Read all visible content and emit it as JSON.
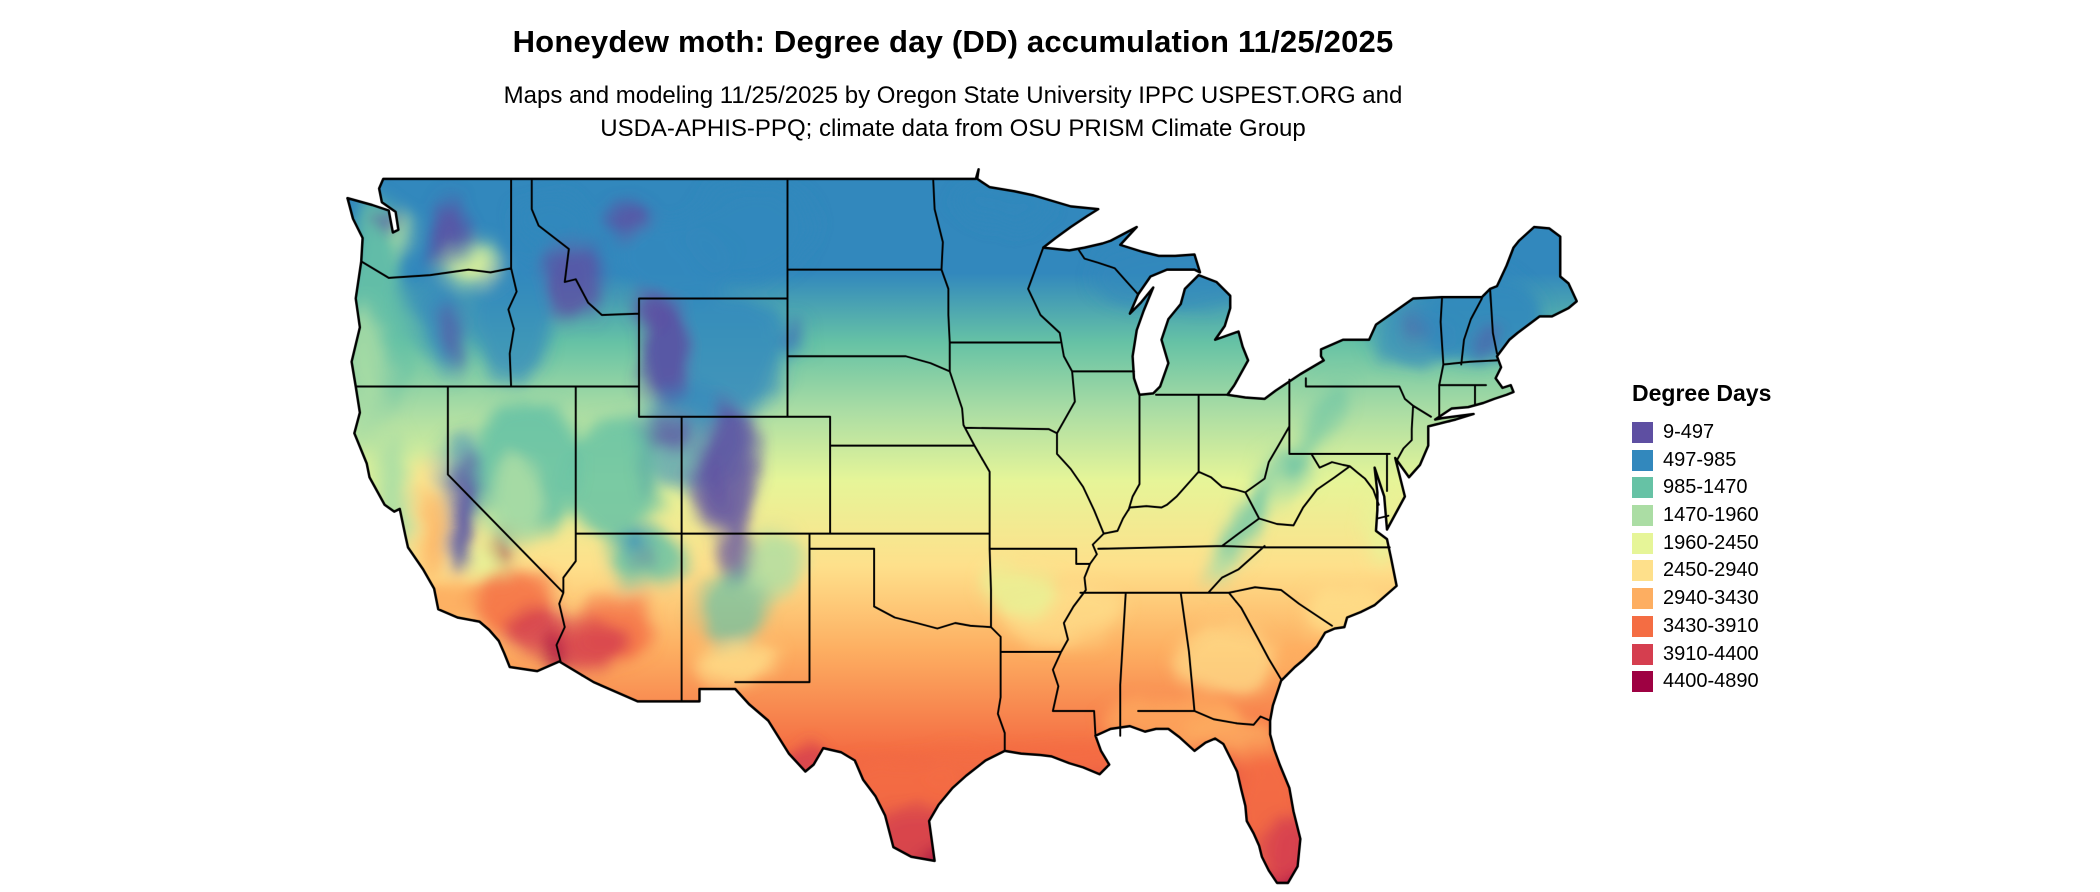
{
  "header": {
    "title": "Honeydew moth: Degree day (DD) accumulation 11/25/2025",
    "subtitle_line1": "Maps and modeling 11/25/2025 by Oregon State University IPPC USPEST.ORG and",
    "subtitle_line2": "USDA-APHIS-PPQ; climate data from OSU PRISM Climate Group"
  },
  "legend": {
    "title": "Degree Days",
    "entries": [
      {
        "label": "9-497",
        "color": "#5e4fa2"
      },
      {
        "label": "497-985",
        "color": "#3288bd"
      },
      {
        "label": "985-1470",
        "color": "#66c2a5"
      },
      {
        "label": "1470-1960",
        "color": "#abdda4"
      },
      {
        "label": "1960-2450",
        "color": "#e6f598"
      },
      {
        "label": "2450-2940",
        "color": "#fee08b"
      },
      {
        "label": "2940-3430",
        "color": "#fdae61"
      },
      {
        "label": "3430-3910",
        "color": "#f46d43"
      },
      {
        "label": "3910-4400",
        "color": "#d53e4f"
      },
      {
        "label": "4400-4890",
        "color": "#9e0142"
      }
    ]
  },
  "chart_data": {
    "type": "choropleth_map",
    "title": "Honeydew moth: Degree day (DD) accumulation 11/25/2025",
    "legend_title": "Degree Days",
    "bins": [
      "9-497",
      "497-985",
      "985-1470",
      "1470-1960",
      "1960-2450",
      "2450-2940",
      "2940-3430",
      "3430-3910",
      "3910-4400",
      "4400-4890"
    ],
    "colors": [
      "#5e4fa2",
      "#3288bd",
      "#66c2a5",
      "#abdda4",
      "#e6f598",
      "#fee08b",
      "#fdae61",
      "#f46d43",
      "#d53e4f",
      "#9e0142"
    ],
    "legend_position": "right"
  }
}
